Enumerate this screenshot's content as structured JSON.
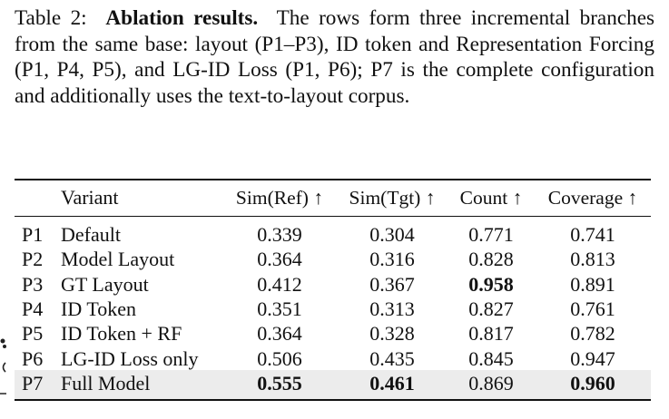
{
  "caption": {
    "label": "Table 2:",
    "title": "Ablation results.",
    "text": "The rows form three incremental branches from the same base: layout (P1–P3), ID token and Representation Forcing (P1, P4, P5), and LG-ID Loss (P1, P6); P7 is the complete configuration and additionally uses the text-to-layout corpus."
  },
  "table": {
    "headers": {
      "id": "",
      "variant": "Variant",
      "sim_ref": "Sim(Ref) ↑",
      "sim_tgt": "Sim(Tgt) ↑",
      "count": "Count ↑",
      "coverage": "Coverage ↑"
    },
    "rows": [
      {
        "id": "P1",
        "variant": "Default",
        "sim_ref": "0.339",
        "sim_tgt": "0.304",
        "count": "0.771",
        "coverage": "0.741"
      },
      {
        "id": "P2",
        "variant": "Model Layout",
        "sim_ref": "0.364",
        "sim_tgt": "0.316",
        "count": "0.828",
        "coverage": "0.813"
      },
      {
        "id": "P3",
        "variant": "GT Layout",
        "sim_ref": "0.412",
        "sim_tgt": "0.367",
        "count": "0.958",
        "coverage": "0.891"
      },
      {
        "id": "P4",
        "variant": "ID Token",
        "sim_ref": "0.351",
        "sim_tgt": "0.313",
        "count": "0.827",
        "coverage": "0.761"
      },
      {
        "id": "P5",
        "variant": "ID Token + RF",
        "sim_ref": "0.364",
        "sim_tgt": "0.328",
        "count": "0.817",
        "coverage": "0.782"
      },
      {
        "id": "P6",
        "variant": "LG-ID Loss only",
        "sim_ref": "0.506",
        "sim_tgt": "0.435",
        "count": "0.845",
        "coverage": "0.947"
      },
      {
        "id": "P7",
        "variant": "Full Model",
        "sim_ref": "0.555",
        "sim_tgt": "0.461",
        "count": "0.869",
        "coverage": "0.960"
      }
    ],
    "bold_cells": [
      "2.count",
      "6.sim_ref",
      "6.sim_tgt",
      "6.coverage"
    ],
    "highlight_row": 6,
    "highlight_color": "#ececec"
  }
}
